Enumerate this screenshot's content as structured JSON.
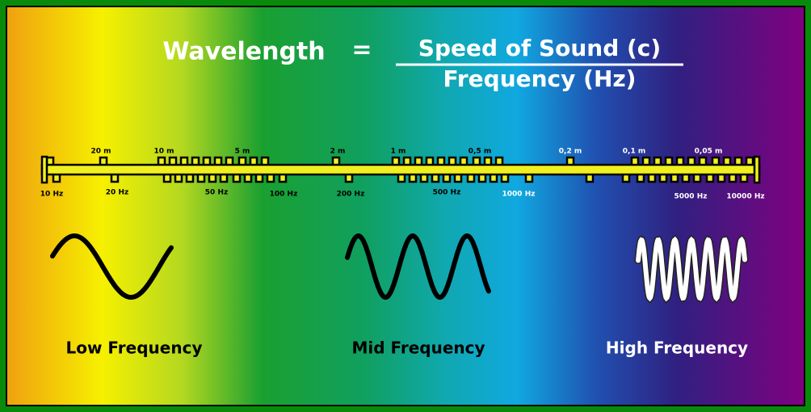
{
  "formula": {
    "left": "Wavelength",
    "equals": "=",
    "numerator": "Speed of Sound (c)",
    "denominator": "Frequency (Hz)"
  },
  "ruler": {
    "wavelength_labels": [
      "20 m",
      "10 m",
      "5 m",
      "2 m",
      "1 m",
      "0,5 m",
      "0,2 m",
      "0,1 m",
      "0,05 m"
    ],
    "frequency_labels": [
      "10 Hz",
      "20 Hz",
      "50 Hz",
      "100 Hz",
      "200 Hz",
      "500 Hz",
      "1000 Hz",
      "5000 Hz",
      "10000 Hz"
    ]
  },
  "waves": [
    {
      "label": "Low Frequency"
    },
    {
      "label": "Mid Frequency"
    },
    {
      "label": "High Frequency"
    }
  ]
}
